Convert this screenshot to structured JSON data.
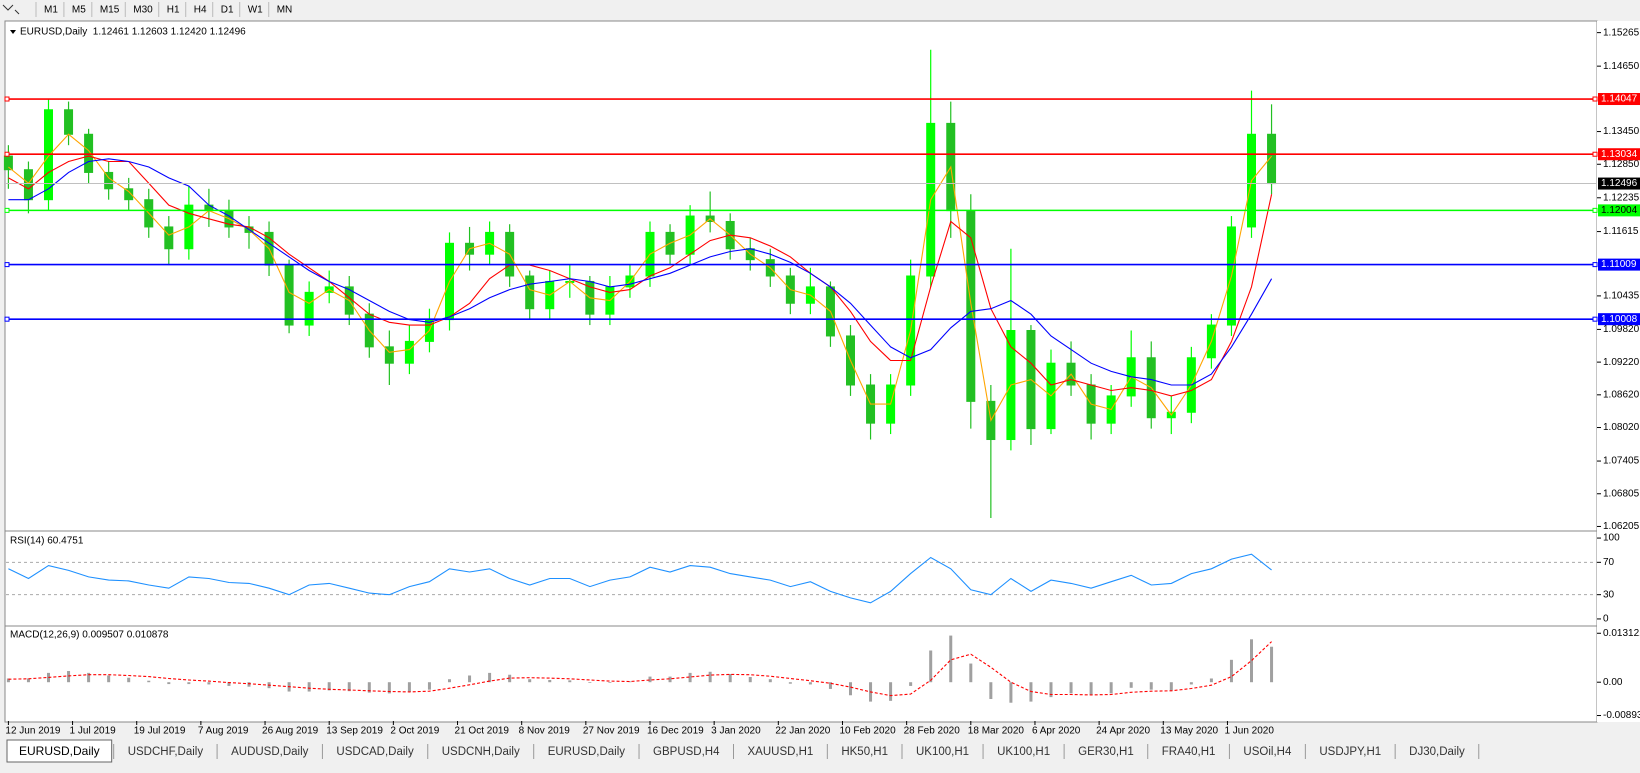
{
  "toolbar": [
    "M1",
    "M5",
    "M15",
    "M30",
    "H1",
    "H4",
    "D1",
    "W1",
    "MN"
  ],
  "tabs": [
    "EURUSD,Daily",
    "USDCHF,Daily",
    "AUDUSD,Daily",
    "USDCAD,Daily",
    "USDCNH,Daily",
    "EURUSD,Daily",
    "GBPUSD,H4",
    "XAUUSD,H1",
    "HK50,H1",
    "UK100,H1",
    "UK100,H1",
    "GER30,H1",
    "FRA40,H1",
    "USOil,H4",
    "USDJPY,H1",
    "DJ30,Daily"
  ],
  "active_tab": 0,
  "chart_data": [
    {
      "type": "candlestick",
      "title": "EURUSD,Daily  1.12461 1.12603 1.12420 1.12496",
      "up_color": "#00ff00",
      "down_color": "#22c022",
      "open": [
        1.13,
        1.1275,
        1.122,
        1.1385,
        1.134,
        1.127,
        1.124,
        1.122,
        1.117,
        1.113,
        1.121,
        1.12,
        1.117,
        1.116,
        1.11,
        1.099,
        1.105,
        1.106,
        1.101,
        1.095,
        1.092,
        1.096,
        1.1,
        1.114,
        1.112,
        1.116,
        1.108,
        1.102,
        1.107,
        1.107,
        1.101,
        1.106,
        1.108,
        1.116,
        1.112,
        1.119,
        1.118,
        1.113,
        1.111,
        1.108,
        1.103,
        1.106,
        1.097,
        1.088,
        1.081,
        1.088,
        1.108,
        1.136,
        1.12,
        1.085,
        1.078,
        1.098,
        1.08,
        1.092,
        1.088,
        1.081,
        1.086,
        1.093,
        1.082,
        1.083,
        1.093,
        1.099,
        1.117,
        1.134
      ],
      "high": [
        1.132,
        1.129,
        1.1405,
        1.14,
        1.135,
        1.129,
        1.126,
        1.124,
        1.119,
        1.1245,
        1.124,
        1.122,
        1.119,
        1.118,
        1.111,
        1.107,
        1.109,
        1.108,
        1.103,
        1.098,
        1.099,
        1.102,
        1.116,
        1.117,
        1.118,
        1.1175,
        1.109,
        1.109,
        1.11,
        1.108,
        1.108,
        1.11,
        1.118,
        1.1175,
        1.121,
        1.1235,
        1.1195,
        1.115,
        1.113,
        1.1095,
        1.1095,
        1.107,
        1.099,
        1.09,
        1.09,
        1.111,
        1.1495,
        1.14,
        1.123,
        1.088,
        1.113,
        1.099,
        1.0945,
        1.096,
        1.09,
        1.088,
        1.098,
        1.096,
        1.086,
        1.095,
        1.101,
        1.119,
        1.142,
        1.1395
      ],
      "low": [
        1.124,
        1.1195,
        1.12,
        1.132,
        1.125,
        1.122,
        1.12,
        1.115,
        1.11,
        1.111,
        1.117,
        1.115,
        1.113,
        1.108,
        1.0975,
        1.097,
        1.103,
        1.099,
        1.093,
        1.088,
        1.09,
        1.094,
        1.098,
        1.109,
        1.11,
        1.106,
        1.1,
        1.1,
        1.104,
        1.099,
        1.099,
        1.104,
        1.106,
        1.11,
        1.11,
        1.116,
        1.111,
        1.109,
        1.106,
        1.101,
        1.101,
        1.095,
        1.086,
        1.078,
        1.079,
        1.086,
        1.106,
        1.115,
        1.08,
        1.0636,
        1.076,
        1.077,
        1.079,
        1.086,
        1.078,
        1.079,
        1.084,
        1.08,
        1.079,
        1.081,
        1.091,
        1.097,
        1.115,
        1.123
      ],
      "close": [
        1.1275,
        1.122,
        1.1385,
        1.134,
        1.127,
        1.124,
        1.122,
        1.117,
        1.113,
        1.121,
        1.12,
        1.117,
        1.116,
        1.11,
        1.099,
        1.105,
        1.106,
        1.101,
        1.095,
        1.092,
        1.096,
        1.1,
        1.114,
        1.112,
        1.116,
        1.108,
        1.102,
        1.107,
        1.107,
        1.101,
        1.106,
        1.108,
        1.116,
        1.112,
        1.119,
        1.118,
        1.113,
        1.111,
        1.108,
        1.103,
        1.106,
        1.097,
        1.088,
        1.081,
        1.088,
        1.108,
        1.136,
        1.12,
        1.085,
        1.078,
        1.098,
        1.08,
        1.092,
        1.088,
        1.081,
        1.086,
        1.093,
        1.082,
        1.083,
        1.093,
        1.099,
        1.117,
        1.134,
        1.12496
      ],
      "series": [
        {
          "color": "#ffa500",
          "values": [
            1.128,
            1.125,
            1.13,
            1.134,
            1.131,
            1.126,
            1.1235,
            1.1195,
            1.1155,
            1.117,
            1.12,
            1.1185,
            1.1165,
            1.113,
            1.105,
            1.103,
            1.1055,
            1.1035,
            1.098,
            1.094,
            1.0945,
            1.098,
            1.107,
            1.113,
            1.114,
            1.112,
            1.1055,
            1.1045,
            1.107,
            1.104,
            1.1035,
            1.107,
            1.112,
            1.114,
            1.1155,
            1.1185,
            1.1155,
            1.112,
            1.1095,
            1.1055,
            1.1045,
            1.1015,
            1.0925,
            1.0845,
            1.0845,
            1.098,
            1.122,
            1.128,
            1.103,
            1.0815,
            1.088,
            1.089,
            1.086,
            1.09,
            1.0845,
            1.0835,
            1.0895,
            1.0875,
            1.0825,
            1.088,
            1.096,
            1.108,
            1.1255,
            1.13
          ]
        },
        {
          "color": "#ff0000",
          "values": [
            1.126,
            1.124,
            1.127,
            1.129,
            1.13,
            1.129,
            1.129,
            1.125,
            1.121,
            1.1195,
            1.1185,
            1.1175,
            1.117,
            1.115,
            1.112,
            1.1095,
            1.107,
            1.104,
            1.101,
            1.0995,
            1.099,
            1.099,
            1.1005,
            1.103,
            1.1075,
            1.11,
            1.11,
            1.109,
            1.1075,
            1.106,
            1.105,
            1.1055,
            1.108,
            1.1095,
            1.112,
            1.1145,
            1.1155,
            1.115,
            1.1135,
            1.1115,
            1.1085,
            1.106,
            1.1015,
            1.096,
            1.0925,
            1.0925,
            1.106,
            1.118,
            1.115,
            1.102,
            1.095,
            1.092,
            1.088,
            1.089,
            1.088,
            1.087,
            1.0875,
            1.087,
            1.086,
            1.087,
            1.089,
            1.096,
            1.106,
            1.123
          ]
        },
        {
          "color": "#0000ff",
          "values": [
            1.122,
            1.122,
            1.124,
            1.127,
            1.129,
            1.1295,
            1.129,
            1.128,
            1.126,
            1.1245,
            1.121,
            1.119,
            1.1165,
            1.114,
            1.1115,
            1.109,
            1.107,
            1.1055,
            1.1035,
            1.1015,
            1.1,
            1.0995,
            1.1005,
            1.102,
            1.104,
            1.1055,
            1.1065,
            1.107,
            1.1075,
            1.107,
            1.106,
            1.1065,
            1.1075,
            1.1085,
            1.11,
            1.1115,
            1.1125,
            1.113,
            1.112,
            1.1105,
            1.1085,
            1.106,
            1.103,
            1.099,
            1.095,
            1.093,
            1.0945,
            1.0985,
            1.1015,
            1.102,
            1.1035,
            1.101,
            1.097,
            1.0945,
            1.092,
            1.0905,
            1.0895,
            1.089,
            1.088,
            1.088,
            1.09,
            1.095,
            1.101,
            1.1075
          ]
        }
      ],
      "levels": [
        {
          "value": 1.14047,
          "color": "#ff0000"
        },
        {
          "value": 1.13034,
          "color": "#ff0000"
        },
        {
          "value": 1.12004,
          "color": "#00ff00"
        },
        {
          "value": 1.11009,
          "color": "#0000ff"
        },
        {
          "value": 1.10008,
          "color": "#0000ff"
        }
      ],
      "last_price": 1.12496,
      "ylim": [
        1.0614,
        1.1546
      ],
      "yticks": [
        1.15265,
        {
          "value": 1.1465,
          "label": "1.14650"
        },
        {
          "value": 1.1345,
          "label": "1.13450"
        },
        {
          "value": 1.1285,
          "label": "1.12850"
        },
        1.12235,
        1.11615,
        1.10435,
        {
          "value": 1.0982,
          "label": "1.09820"
        },
        {
          "value": 1.0922,
          "label": "1.09220"
        },
        {
          "value": 1.0862,
          "label": "1.08620"
        },
        {
          "value": 1.0802,
          "label": "1.08020"
        },
        1.07405,
        1.06805,
        1.06205
      ],
      "xticks": [
        {
          "value": 0,
          "label": "12 Jun 2019"
        },
        {
          "value": 3.2,
          "label": "1 Jul 2019"
        },
        {
          "value": 6.4,
          "label": "19 Jul 2019"
        },
        {
          "value": 9.6,
          "label": "7 Aug 2019"
        },
        {
          "value": 12.8,
          "label": "26 Aug 2019"
        },
        {
          "value": 16,
          "label": "13 Sep 2019"
        },
        {
          "value": 19.2,
          "label": "2 Oct 2019"
        },
        {
          "value": 22.4,
          "label": "21 Oct 2019"
        },
        {
          "value": 25.6,
          "label": "8 Nov 2019"
        },
        {
          "value": 28.8,
          "label": "27 Nov 2019"
        },
        {
          "value": 32,
          "label": "16 Dec 2019"
        },
        {
          "value": 35.2,
          "label": "3 Jan 2020"
        },
        {
          "value": 38.4,
          "label": "22 Jan 2020"
        },
        {
          "value": 41.6,
          "label": "10 Feb 2020"
        },
        {
          "value": 44.8,
          "label": "28 Feb 2020"
        },
        {
          "value": 48,
          "label": "18 Mar 2020"
        },
        {
          "value": 51.2,
          "label": "6 Apr 2020"
        },
        {
          "value": 54.4,
          "label": "24 Apr 2020"
        },
        {
          "value": 57.6,
          "label": "13 May 2020"
        },
        {
          "value": 60.8,
          "label": "1 Jun 2020"
        }
      ]
    },
    {
      "type": "line",
      "title": "RSI(14) 60.4751",
      "color": "#1e90ff",
      "values": [
        62,
        50,
        66,
        60,
        52,
        48,
        47,
        42,
        38,
        52,
        50,
        45,
        44,
        38,
        30,
        42,
        44,
        38,
        32,
        30,
        40,
        46,
        62,
        58,
        62,
        50,
        42,
        50,
        50,
        40,
        48,
        52,
        64,
        58,
        66,
        64,
        56,
        52,
        48,
        40,
        46,
        34,
        26,
        20,
        34,
        56,
        76,
        62,
        36,
        30,
        50,
        34,
        48,
        44,
        38,
        46,
        54,
        42,
        44,
        56,
        62,
        74,
        80,
        60.4751
      ],
      "levels": [
        70,
        30
      ],
      "ylim": [
        -7.5,
        107.5
      ],
      "yticks": [
        100,
        70,
        30,
        0
      ]
    },
    {
      "type": "macd",
      "title": "MACD(12,26,9) 0.009507 0.010878",
      "bar_color": "#a0a0a0",
      "signal_color": "#ff0000",
      "values": [
        0.001,
        0.001,
        0.0025,
        0.003,
        0.0025,
        0.0018,
        0.0012,
        0.0004,
        -0.0005,
        -0.0005,
        -0.0006,
        -0.001,
        -0.0012,
        -0.0016,
        -0.0025,
        -0.0025,
        -0.0022,
        -0.0024,
        -0.0028,
        -0.003,
        -0.0026,
        -0.002,
        0.0008,
        0.0018,
        0.0025,
        0.002,
        0.0008,
        0.0006,
        0.0005,
        -0.0002,
        -0.0002,
        0.0002,
        0.0015,
        0.0015,
        0.0025,
        0.0028,
        0.0022,
        0.0014,
        0.0008,
        -0.0004,
        -0.0006,
        -0.0018,
        -0.0035,
        -0.0052,
        -0.005,
        -0.001,
        0.0085,
        0.0125,
        0.005,
        -0.0045,
        -0.0055,
        -0.0052,
        -0.004,
        -0.003,
        -0.0035,
        -0.003,
        -0.0015,
        -0.002,
        -0.0022,
        -0.0006,
        0.001,
        0.006,
        0.0115,
        0.009507
      ],
      "signal": [
        0.0008,
        0.0009,
        0.0013,
        0.0017,
        0.002,
        0.002,
        0.0018,
        0.0015,
        0.001,
        0.0006,
        0.0003,
        -0.0001,
        -0.0004,
        -0.0008,
        -0.0012,
        -0.0016,
        -0.0019,
        -0.0021,
        -0.0023,
        -0.0025,
        -0.0026,
        -0.0024,
        -0.0016,
        -0.0007,
        0.0003,
        0.0011,
        0.0012,
        0.0011,
        0.0009,
        0.0006,
        0.0003,
        0.0002,
        0.0006,
        0.0009,
        0.0014,
        0.0019,
        0.0021,
        0.002,
        0.0016,
        0.001,
        0.0004,
        -0.0003,
        -0.0013,
        -0.0026,
        -0.0036,
        -0.0032,
        0.0005,
        0.006,
        0.0075,
        0.004,
        0.0,
        -0.0025,
        -0.0033,
        -0.0033,
        -0.0034,
        -0.0033,
        -0.0027,
        -0.0024,
        -0.0023,
        -0.0017,
        -0.0008,
        0.0015,
        0.0058,
        0.010878
      ],
      "ylim": [
        -0.0104,
        0.0148
      ],
      "yticks": [
        0.013121,
        {
          "value": 0,
          "label": "0.00"
        },
        -0.008933
      ]
    }
  ]
}
